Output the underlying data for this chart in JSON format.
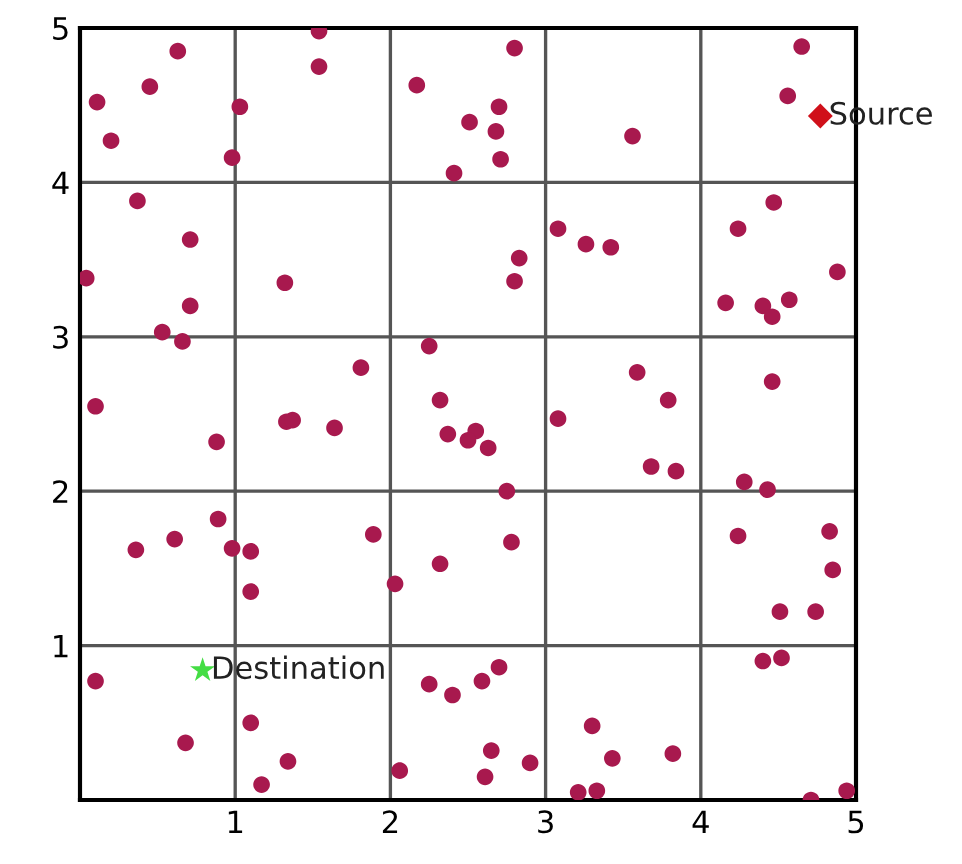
{
  "chart_data": {
    "type": "scatter",
    "xlim": [
      0,
      5
    ],
    "ylim": [
      0,
      5
    ],
    "xticks": [
      1,
      2,
      3,
      4,
      5
    ],
    "yticks": [
      1,
      2,
      3,
      4,
      5
    ],
    "grid": true,
    "legend": false,
    "series": [
      {
        "color": "#a8194e",
        "marker": "circle",
        "x": [
          0.63,
          0.45,
          0.11,
          0.2,
          1.03,
          0.98,
          1.54,
          1.54,
          2.17,
          2.51,
          2.7,
          2.68,
          2.71,
          2.41,
          2.8,
          0.37,
          0.71,
          0.04,
          0.71,
          1.32,
          0.53,
          0.66,
          0.1,
          1.81,
          2.25,
          2.32,
          1.33,
          1.37,
          1.64,
          0.88,
          2.37,
          2.55,
          2.5,
          2.63,
          2.83,
          2.8,
          3.56,
          4.65,
          4.56,
          3.08,
          3.26,
          3.42,
          4.47,
          4.24,
          4.88,
          4.16,
          4.4,
          4.46,
          4.57,
          3.59,
          3.79,
          3.08,
          4.46,
          2.75,
          2.78,
          0.89,
          0.61,
          0.36,
          0.98,
          1.1,
          1.1,
          1.89,
          2.32,
          2.03,
          0.1,
          1.1,
          0.68,
          1.34,
          1.17,
          2.06,
          2.25,
          2.4,
          2.59,
          2.7,
          2.65,
          2.61,
          3.68,
          3.84,
          4.28,
          4.43,
          4.24,
          4.83,
          4.85,
          4.51,
          4.74,
          4.4,
          4.52,
          3.3,
          3.43,
          3.82,
          2.9,
          3.21,
          3.33,
          4.71,
          4.94
        ],
        "values": [
          4.85,
          4.62,
          4.52,
          4.27,
          4.49,
          4.16,
          4.98,
          4.75,
          4.63,
          4.39,
          4.49,
          4.33,
          4.15,
          4.06,
          4.87,
          3.88,
          3.63,
          3.38,
          3.2,
          3.35,
          3.03,
          2.97,
          2.55,
          2.8,
          2.94,
          2.59,
          2.45,
          2.46,
          2.41,
          2.32,
          2.37,
          2.39,
          2.33,
          2.28,
          3.51,
          3.36,
          4.3,
          4.88,
          4.56,
          3.7,
          3.6,
          3.58,
          3.87,
          3.7,
          3.42,
          3.22,
          3.2,
          3.13,
          3.24,
          2.77,
          2.59,
          2.47,
          2.71,
          2.0,
          1.67,
          1.82,
          1.69,
          1.62,
          1.63,
          1.61,
          1.35,
          1.72,
          1.53,
          1.4,
          0.77,
          0.5,
          0.37,
          0.25,
          0.1,
          0.19,
          0.75,
          0.68,
          0.77,
          0.86,
          0.32,
          0.15,
          2.16,
          2.13,
          2.06,
          2.01,
          1.71,
          1.74,
          1.49,
          1.22,
          1.22,
          0.9,
          0.92,
          0.48,
          0.27,
          0.3,
          0.24,
          0.05,
          0.06,
          0.0,
          0.06
        ]
      },
      {
        "name": "Source",
        "color": "#d0101a",
        "marker": "diamond",
        "x": [
          4.77
        ],
        "values": [
          4.43
        ]
      },
      {
        "name": "Destination",
        "color": "#44dd44",
        "marker": "star",
        "x": [
          0.79
        ],
        "values": [
          0.84
        ]
      }
    ]
  }
}
